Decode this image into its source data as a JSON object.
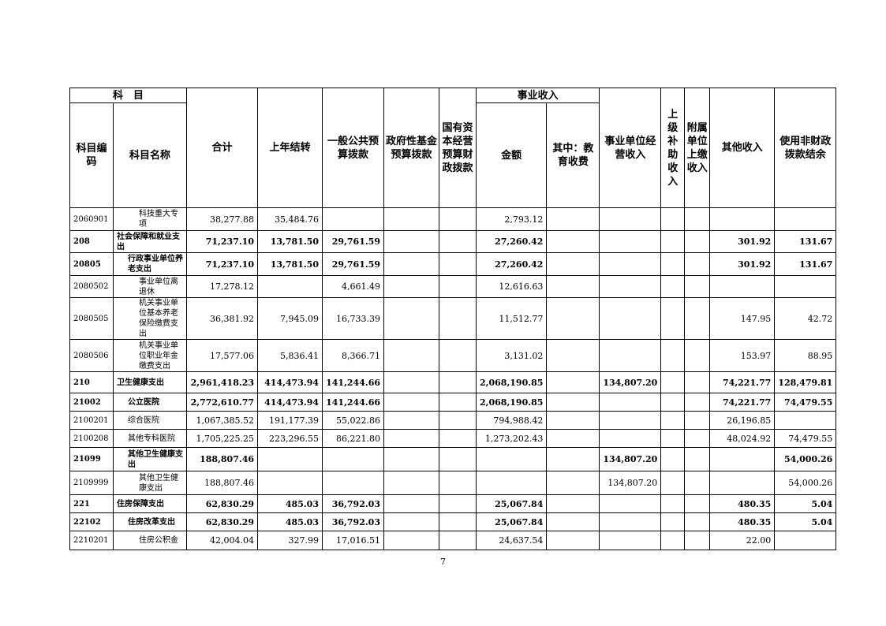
{
  "header": {
    "subject": "科　目",
    "code": "科目编码",
    "name": "科目名称",
    "total": "合计",
    "carryover": "上年结转",
    "general_budget": "一般公共预算拨款",
    "gov_fund": "政府性基金预算拨款",
    "state_capital": "国有资本经营预算财政拨款",
    "business_income": "事业收入",
    "amount": "金额",
    "education_fee": "其中：教育收费",
    "operating_income": "事业单位经营收入",
    "superior_subsidy": "上级补助收入",
    "affiliated_income": "附属单位上缴收入",
    "other_income": "其他收入",
    "non_fiscal_balance": "使用非财政拨款结余"
  },
  "rows": [
    {
      "bold": false,
      "indent": 2,
      "c": [
        "2060901",
        "科技重大专项",
        "38,277.88",
        "35,484.76",
        "",
        "",
        "",
        "2,793.12",
        "",
        "",
        "",
        "",
        "",
        ""
      ]
    },
    {
      "bold": true,
      "indent": 0,
      "c": [
        "208",
        "社会保障和就业支出",
        "71,237.10",
        "13,781.50",
        "29,761.59",
        "",
        "",
        "27,260.42",
        "",
        "",
        "",
        "",
        "301.92",
        "131.67"
      ]
    },
    {
      "bold": true,
      "indent": 1,
      "c": [
        "20805",
        "行政事业单位养老支出",
        "71,237.10",
        "13,781.50",
        "29,761.59",
        "",
        "",
        "27,260.42",
        "",
        "",
        "",
        "",
        "301.92",
        "131.67"
      ]
    },
    {
      "bold": false,
      "indent": 2,
      "c": [
        "2080502",
        "事业单位离退休",
        "17,278.12",
        "",
        "4,661.49",
        "",
        "",
        "12,616.63",
        "",
        "",
        "",
        "",
        "",
        ""
      ]
    },
    {
      "bold": false,
      "indent": 2,
      "c": [
        "2080505",
        "机关事业单位基本养老保险缴费支出",
        "36,381.92",
        "7,945.09",
        "16,733.39",
        "",
        "",
        "11,512.77",
        "",
        "",
        "",
        "",
        "147.95",
        "42.72"
      ]
    },
    {
      "bold": false,
      "indent": 2,
      "c": [
        "2080506",
        "机关事业单位职业年金缴费支出",
        "17,577.06",
        "5,836.41",
        "8,366.71",
        "",
        "",
        "3,131.02",
        "",
        "",
        "",
        "",
        "153.97",
        "88.95"
      ]
    },
    {
      "bold": true,
      "indent": 0,
      "c": [
        "210",
        "卫生健康支出",
        "2,961,418.23",
        "414,473.94",
        "141,244.66",
        "",
        "",
        "2,068,190.85",
        "",
        "134,807.20",
        "",
        "",
        "74,221.77",
        "128,479.81"
      ]
    },
    {
      "bold": true,
      "indent": 1,
      "c": [
        "21002",
        "公立医院",
        "2,772,610.77",
        "414,473.94",
        "141,244.66",
        "",
        "",
        "2,068,190.85",
        "",
        "",
        "",
        "",
        "74,221.77",
        "74,479.55"
      ]
    },
    {
      "bold": false,
      "indent": 1,
      "c": [
        "2100201",
        "综合医院",
        "1,067,385.52",
        "191,177.39",
        "55,022.86",
        "",
        "",
        "794,988.42",
        "",
        "",
        "",
        "",
        "26,196.85",
        ""
      ]
    },
    {
      "bold": false,
      "indent": 1,
      "c": [
        "2100208",
        "其他专科医院",
        "1,705,225.25",
        "223,296.55",
        "86,221.80",
        "",
        "",
        "1,273,202.43",
        "",
        "",
        "",
        "",
        "48,024.92",
        "74,479.55"
      ]
    },
    {
      "bold": true,
      "indent": 1,
      "c": [
        "21099",
        "其他卫生健康支出",
        "188,807.46",
        "",
        "",
        "",
        "",
        "",
        "",
        "134,807.20",
        "",
        "",
        "",
        "54,000.26"
      ]
    },
    {
      "bold": false,
      "indent": 2,
      "c": [
        "2109999",
        "其他卫生健康支出",
        "188,807.46",
        "",
        "",
        "",
        "",
        "",
        "",
        "134,807.20",
        "",
        "",
        "",
        "54,000.26"
      ]
    },
    {
      "bold": true,
      "indent": 0,
      "c": [
        "221",
        "住房保障支出",
        "62,830.29",
        "485.03",
        "36,792.03",
        "",
        "",
        "25,067.84",
        "",
        "",
        "",
        "",
        "480.35",
        "5.04"
      ]
    },
    {
      "bold": true,
      "indent": 1,
      "c": [
        "22102",
        "住房改革支出",
        "62,830.29",
        "485.03",
        "36,792.03",
        "",
        "",
        "25,067.84",
        "",
        "",
        "",
        "",
        "480.35",
        "5.04"
      ]
    },
    {
      "bold": false,
      "indent": 2,
      "c": [
        "2210201",
        "住房公积金",
        "42,004.04",
        "327.99",
        "17,016.51",
        "",
        "",
        "24,637.54",
        "",
        "",
        "",
        "",
        "22.00",
        ""
      ]
    }
  ],
  "page_number": "7"
}
